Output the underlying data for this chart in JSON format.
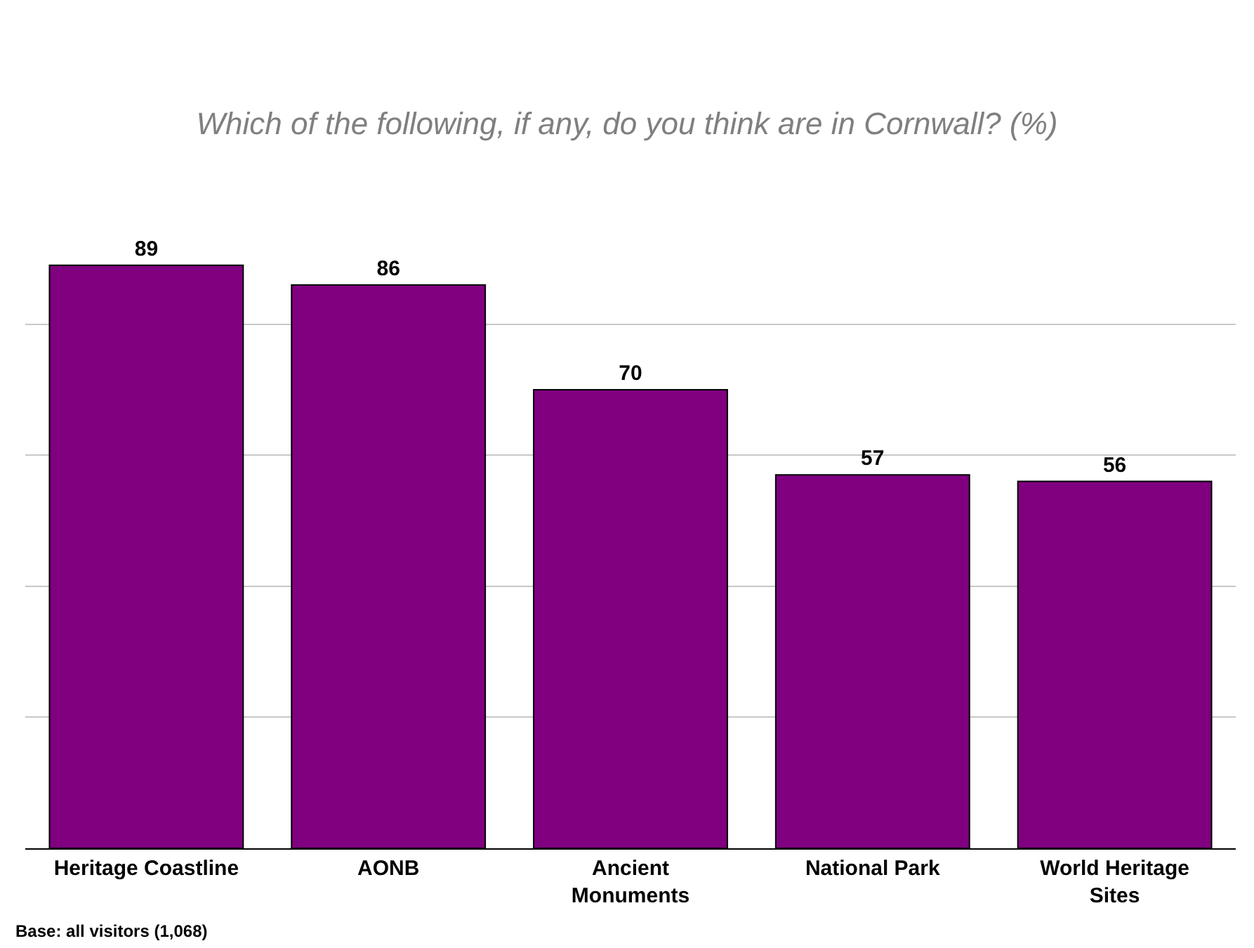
{
  "chart_data": {
    "type": "bar",
    "title": "Which of the following, if any, do you think are in Cornwall? (%)",
    "categories": [
      "Heritage Coastline",
      "AONB",
      "Ancient\nMonuments",
      "National Park",
      "World Heritage\nSites"
    ],
    "values": [
      89,
      86,
      70,
      57,
      56
    ],
    "color": "#800080",
    "data_labels": true,
    "grid": "y",
    "tick_labels": "x",
    "annotations": [
      "Base: all visitors (1,068)"
    ]
  }
}
